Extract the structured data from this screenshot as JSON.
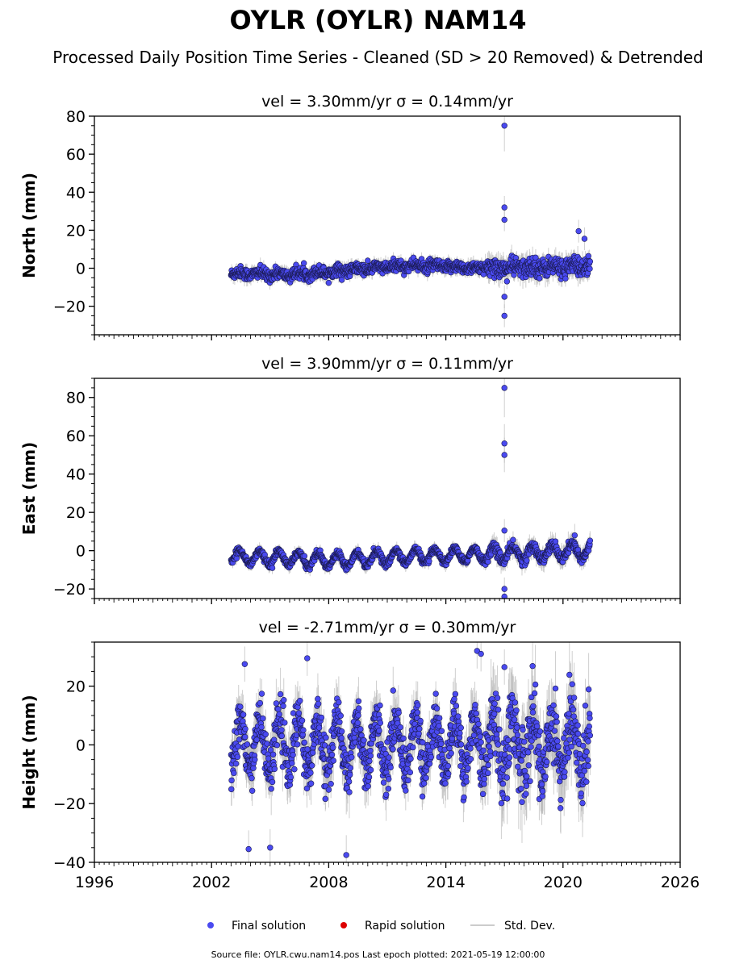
{
  "chart_data": {
    "type": "scatter",
    "title": "OYLR (OYLR) NAM14",
    "subtitle": "Processed Daily Position Time Series - Cleaned (SD > 20 Removed) & Detrended",
    "xlim": [
      1996,
      2026
    ],
    "xticks": [
      "1996",
      "2002",
      "2008",
      "2014",
      "2020",
      "2026"
    ],
    "colors": {
      "final": "#4a4af0",
      "rapid": "#dd0000",
      "stddev": "#bbbbbb"
    },
    "panels": [
      {
        "id": "north",
        "title": "vel = 3.30mm/yr   σ = 0.14mm/yr",
        "ylabel": "North (mm)",
        "ylim": [
          -35,
          80
        ],
        "yticks": [
          -20,
          0,
          20,
          40,
          60,
          80
        ],
        "ytick_labels": [
          "−20",
          "0",
          "20",
          "40",
          "60",
          "80"
        ],
        "data_range": [
          2003.0,
          2021.4
        ],
        "noise": {
          "amp": 1.5,
          "annual": 0.8,
          "sd": 2.2
        },
        "trend": [
          [
            2003,
            -2.5
          ],
          [
            2006,
            -3.5
          ],
          [
            2012,
            1.5
          ],
          [
            2016,
            0
          ],
          [
            2021.4,
            1.0
          ]
        ],
        "outliers": [
          [
            2017.0,
            75
          ],
          [
            2017.0,
            32
          ],
          [
            2017.0,
            25.5
          ],
          [
            2017.0,
            -25
          ],
          [
            2017.0,
            -15
          ],
          [
            2020.8,
            19.5
          ],
          [
            2021.1,
            15.5
          ]
        ]
      },
      {
        "id": "east",
        "title": "vel = 3.90mm/yr   σ = 0.11mm/yr",
        "ylabel": "East (mm)",
        "ylim": [
          -25,
          90
        ],
        "yticks": [
          -20,
          0,
          20,
          40,
          60,
          80
        ],
        "ytick_labels": [
          "−20",
          "0",
          "20",
          "40",
          "60",
          "80"
        ],
        "data_range": [
          2003.0,
          2021.4
        ],
        "noise": {
          "amp": 0.9,
          "annual": 3.5,
          "sd": 2.0
        },
        "trend": [
          [
            2003,
            -3
          ],
          [
            2008,
            -5
          ],
          [
            2012,
            -3
          ],
          [
            2016,
            -2
          ],
          [
            2021.4,
            0
          ]
        ],
        "outliers": [
          [
            2017.0,
            85
          ],
          [
            2017.0,
            56
          ],
          [
            2017.0,
            50
          ],
          [
            2017.0,
            10.5
          ],
          [
            2017.0,
            -20
          ],
          [
            2017.0,
            -24
          ],
          [
            2020.6,
            8
          ]
        ]
      },
      {
        "id": "height",
        "title": "vel = -2.71mm/yr   σ = 0.30mm/yr",
        "ylabel": "Height (mm)",
        "ylim": [
          -40,
          35
        ],
        "yticks": [
          -40,
          -20,
          0,
          20
        ],
        "ytick_labels": [
          "−40",
          "−20",
          "0",
          "20"
        ],
        "data_range": [
          2003.0,
          2021.4
        ],
        "noise": {
          "amp": 4.0,
          "annual": 9.0,
          "sd": 5.0
        },
        "trend": [
          [
            2003,
            0
          ],
          [
            2021.4,
            0
          ]
        ],
        "outliers": [
          [
            2003.7,
            27.5
          ],
          [
            2006.9,
            29.5
          ],
          [
            2003.9,
            -35.5
          ],
          [
            2005.0,
            -35
          ],
          [
            2008.9,
            -37.5
          ],
          [
            2015.6,
            32
          ],
          [
            2015.8,
            31
          ],
          [
            2017.0,
            26.5
          ]
        ]
      }
    ],
    "legend": {
      "placement": "bottom-center",
      "entries": [
        {
          "label": "Final solution",
          "marker": "circle",
          "color": "#4a4af0"
        },
        {
          "label": "Rapid solution",
          "marker": "circle",
          "color": "#dd0000"
        },
        {
          "label": "Std. Dev.",
          "marker": "line",
          "color": "#bbbbbb"
        }
      ]
    },
    "source_note": "Source file: OYLR.cwu.nam14.pos  Last epoch plotted: 2021-05-19 12:00:00"
  }
}
